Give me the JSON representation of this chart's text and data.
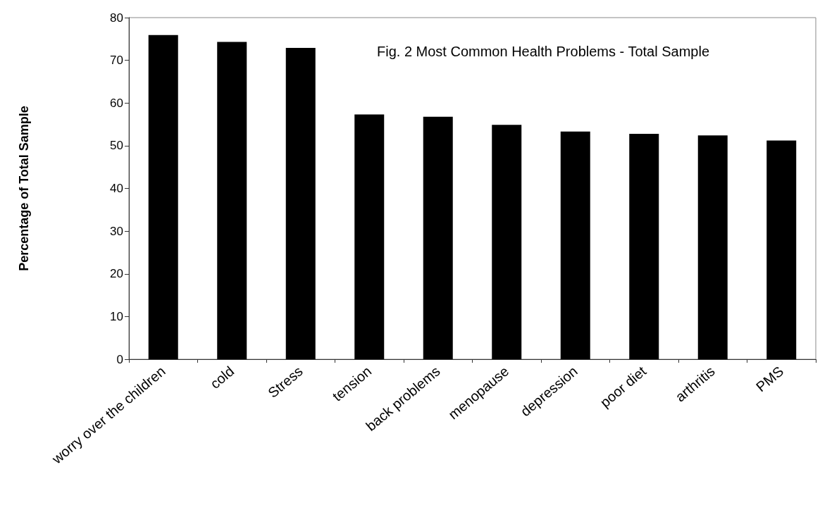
{
  "chart_data": {
    "type": "bar",
    "title": "Fig. 2 Most Common Health Problems - Total Sample",
    "ylabel": "Percentage of Total Sample",
    "categories": [
      "worry over the children",
      "cold",
      "Stress",
      "tension",
      "back problems",
      "menopause",
      "depression",
      "poor diet",
      "arthritis",
      "PMS"
    ],
    "values": [
      75.9,
      74.3,
      72.9,
      57.3,
      56.8,
      54.9,
      53.3,
      52.8,
      52.4,
      51.2
    ],
    "color": "#000000",
    "ylim": [
      0,
      80
    ],
    "yticks": [
      0,
      10,
      20,
      30,
      40,
      50,
      60,
      70,
      80
    ],
    "grid": false
  }
}
